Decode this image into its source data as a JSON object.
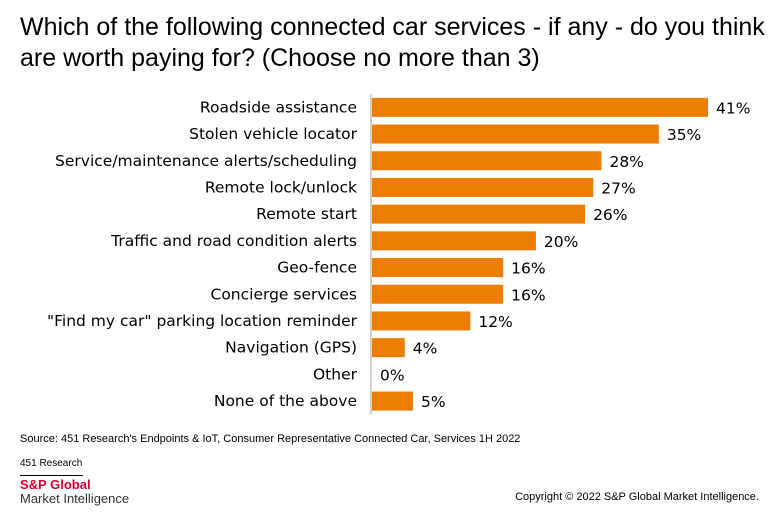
{
  "title": "Which of the following connected car services - if any - do you think are worth paying for? (Choose no more than 3)",
  "chart_data": {
    "type": "bar",
    "orientation": "horizontal",
    "title": "Which of the following connected car services - if any - do you think are worth paying for? (Choose no more than 3)",
    "categories": [
      "Roadside assistance",
      "Stolen vehicle locator",
      "Service/maintenance alerts/scheduling",
      "Remote lock/unlock",
      "Remote start",
      "Traffic and road condition alerts",
      "Geo-fence",
      "Concierge services",
      "\"Find my car\" parking location reminder",
      "Navigation (GPS)",
      "Other",
      "None of the above"
    ],
    "values": [
      41,
      35,
      28,
      27,
      26,
      20,
      16,
      16,
      12,
      4,
      0,
      5
    ],
    "value_labels": [
      "41%",
      "35%",
      "28%",
      "27%",
      "26%",
      "20%",
      "16%",
      "16%",
      "12%",
      "4%",
      "0%",
      "5%"
    ],
    "unit": "%",
    "xlim": [
      0,
      41
    ],
    "bar_color": "#ed7d00",
    "axis_color": "#a6a6a6",
    "grid": false,
    "legend": "none"
  },
  "footer": {
    "source": "Source: 451 Research's Endpoints & IoT, Consumer Representative Connected Car, Services 1H 2022",
    "small_brand": "451 Research",
    "brand_name": "S&P Global",
    "brand_sub": "Market Intelligence",
    "copyright": "Copyright © 2022 S&P Global Market Intelligence."
  },
  "colors": {
    "brand_red": "#d6002a",
    "bar": "#ed7d00"
  }
}
